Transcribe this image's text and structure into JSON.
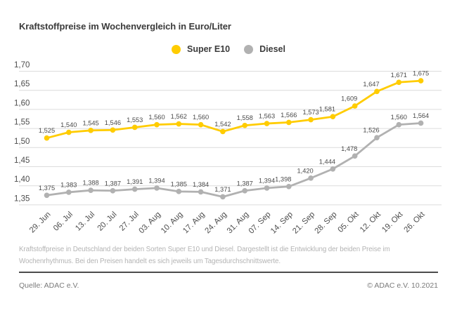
{
  "page": {
    "title": "Kraftstoffpreise im Wochenvergleich in Euro/Liter",
    "caption": "Kraftstoffpreise in Deutschland der beiden Sorten Super E10 und Diesel. Dargestellt ist die Entwicklung der beiden Preise im Wochenrhythmus. Bei den Preisen handelt es sich jeweils um Tagesdurchschnittswerte.",
    "source": "Quelle: ADAC e.V.",
    "copyright": "© ADAC e.V. 10.2021"
  },
  "legend": [
    {
      "label": "Super E10",
      "color": "#FFCC00"
    },
    {
      "label": "Diesel",
      "color": "#B1B1B1"
    }
  ],
  "chart_data": {
    "type": "line",
    "title": "Kraftstoffpreise im Wochenvergleich in Euro/Liter",
    "categories": [
      "29. Jun",
      "06. Jul",
      "13. Jul",
      "20. Jul",
      "27. Jul",
      "03. Aug",
      "10. Aug",
      "17. Aug",
      "24. Aug",
      "31. Aug",
      "07. Sep",
      "14. Sep",
      "21. Sep",
      "28. Sep",
      "05. Okt",
      "12. Okt",
      "19. Okt",
      "26. Okt"
    ],
    "series": [
      {
        "name": "Super E10",
        "color": "#FFCC00",
        "values": [
          1.525,
          1.54,
          1.545,
          1.546,
          1.553,
          1.56,
          1.562,
          1.56,
          1.542,
          1.558,
          1.563,
          1.566,
          1.573,
          1.581,
          1.609,
          1.647,
          1.671,
          1.675
        ]
      },
      {
        "name": "Diesel",
        "color": "#B1B1B1",
        "values": [
          1.375,
          1.383,
          1.388,
          1.387,
          1.391,
          1.394,
          1.385,
          1.384,
          1.371,
          1.387,
          1.394,
          1.398,
          1.42,
          1.444,
          1.478,
          1.526,
          1.56,
          1.564
        ]
      }
    ],
    "ylim": [
      1.35,
      1.7
    ],
    "yticks": [
      1.7,
      1.65,
      1.6,
      1.55,
      1.5,
      1.45,
      1.4,
      1.35
    ],
    "xlabel": "",
    "ylabel": "",
    "grid": true,
    "legend_position": "top-center",
    "decimal_separator": ",",
    "value_labels_shown": true
  },
  "colors": {
    "grid": "#dcdcdc",
    "axis_text": "#4d4d4d",
    "value_label": "#4a4a4a",
    "background": "#ffffff"
  }
}
